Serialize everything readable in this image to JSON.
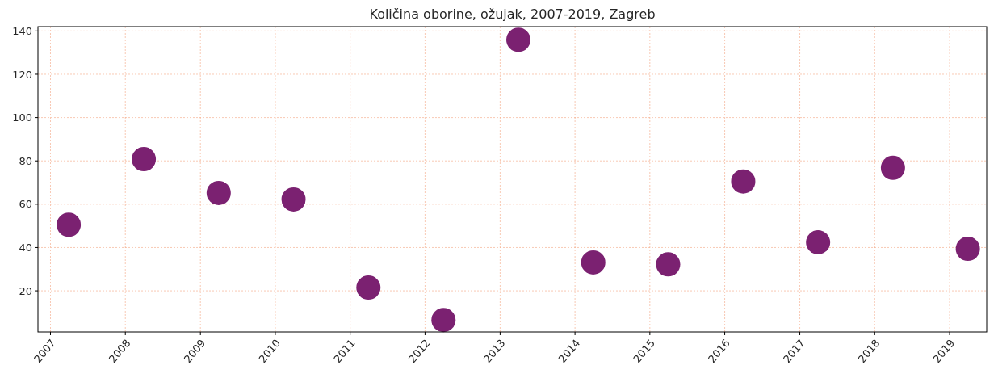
{
  "chart_data": {
    "type": "scatter",
    "title": "Količina oborine, ožujak, 2007-2019, Zagreb",
    "x": [
      "2007-03-31",
      "2008-03-31",
      "2009-03-31",
      "2010-03-31",
      "2011-03-31",
      "2012-03-31",
      "2013-03-31",
      "2014-03-31",
      "2015-03-31",
      "2016-03-31",
      "2017-03-31",
      "2018-03-31",
      "2019-03-31"
    ],
    "series": [
      {
        "color": "#7b2171",
        "values": [
          50.5,
          80.8,
          65.2,
          62.2,
          21.5,
          6.5,
          135.9,
          33.1,
          32.2,
          70.5,
          42.4,
          76.8,
          39.4
        ]
      }
    ],
    "marker": "circle",
    "xlim": [
      "2006-11-01",
      "2019-07-01"
    ],
    "xticks": [
      {
        "value": "2007-01-01",
        "label": "2007"
      },
      {
        "value": "2008-01-01",
        "label": "2008"
      },
      {
        "value": "2009-01-01",
        "label": "2009"
      },
      {
        "value": "2010-01-01",
        "label": "2010"
      },
      {
        "value": "2011-01-01",
        "label": "2011"
      },
      {
        "value": "2012-01-01",
        "label": "2012"
      },
      {
        "value": "2013-01-01",
        "label": "2013"
      },
      {
        "value": "2014-01-01",
        "label": "2014"
      },
      {
        "value": "2015-01-01",
        "label": "2015"
      },
      {
        "value": "2016-01-01",
        "label": "2016"
      },
      {
        "value": "2017-01-01",
        "label": "2017"
      },
      {
        "value": "2018-01-01",
        "label": "2018"
      },
      {
        "value": "2019-01-01",
        "label": "2019"
      }
    ],
    "ylim": [
      1,
      142
    ],
    "yticks": [
      20,
      40,
      60,
      80,
      100,
      120,
      140
    ],
    "grid": true
  }
}
